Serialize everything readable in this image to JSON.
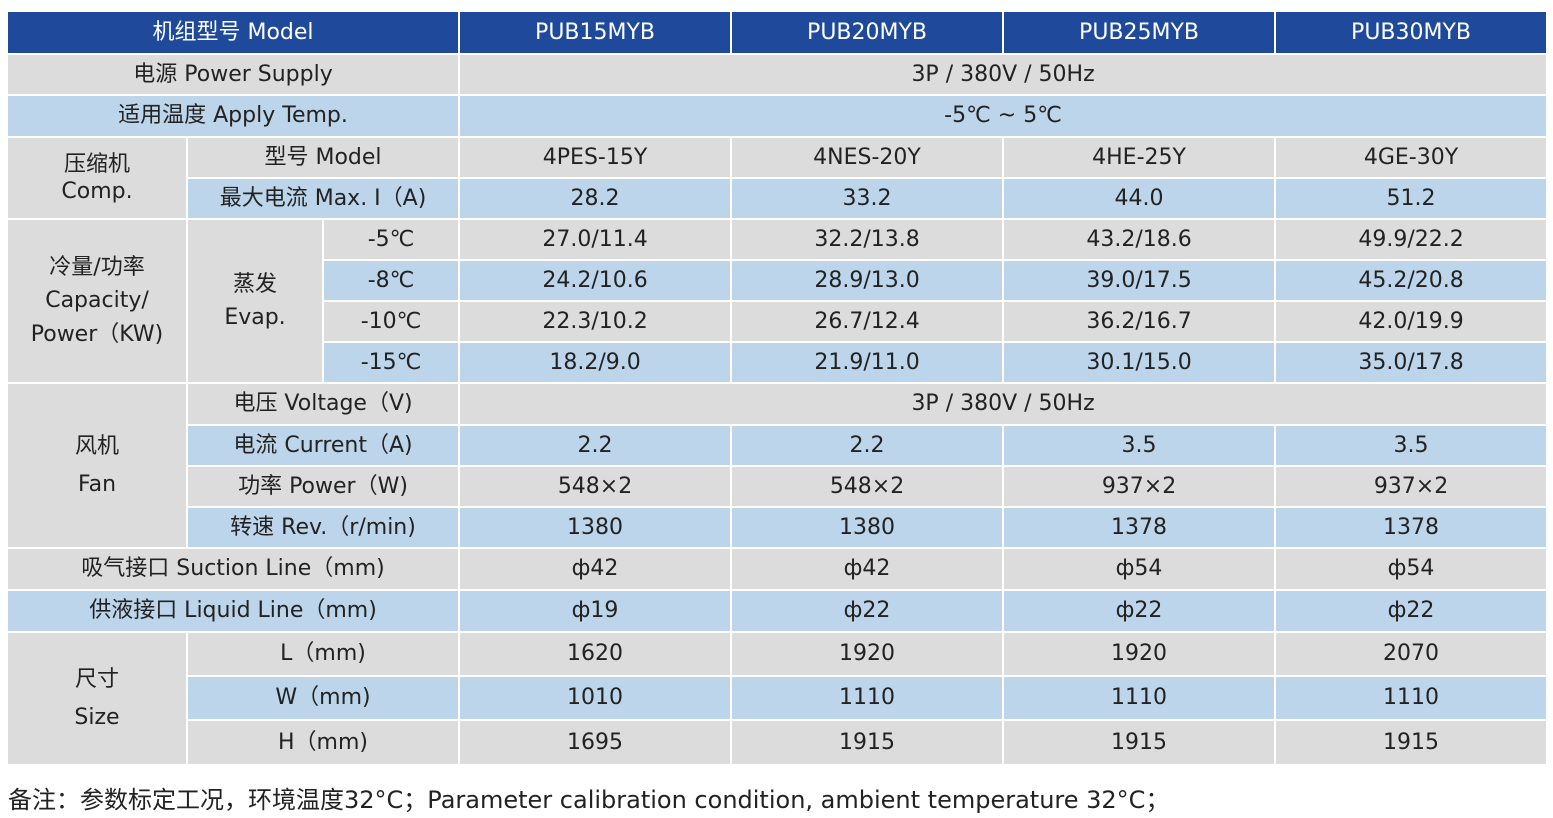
{
  "header": {
    "label": "机组型号 Model",
    "models": [
      "PUB15MYB",
      "PUB20MYB",
      "PUB25MYB",
      "PUB30MYB"
    ]
  },
  "power_supply": {
    "label": "电源 Power Supply",
    "value": "3P / 380V / 50Hz"
  },
  "apply_temp": {
    "label": "适用温度 Apply Temp.",
    "value": "-5℃ ~ 5℃"
  },
  "compressor": {
    "group_label_cn": "压缩机",
    "group_label_en": "Comp.",
    "model_label": "型号 Model",
    "models": [
      "4PES-15Y",
      "4NES-20Y",
      "4HE-25Y",
      "4GE-30Y"
    ],
    "max_current_label": "最大电流 Max. I（A)",
    "max_current": [
      "28.2",
      "33.2",
      "44.0",
      "51.2"
    ]
  },
  "capacity": {
    "group_label_1": "冷量/功率",
    "group_label_2": "Capacity/",
    "group_label_3": "Power（KW)",
    "evap_label_cn": "蒸发",
    "evap_label_en": "Evap.",
    "rows": [
      {
        "temp": "-5℃",
        "values": [
          "27.0/11.4",
          "32.2/13.8",
          "43.2/18.6",
          "49.9/22.2"
        ]
      },
      {
        "temp": "-8℃",
        "values": [
          "24.2/10.6",
          "28.9/13.0",
          "39.0/17.5",
          "45.2/20.8"
        ]
      },
      {
        "temp": "-10℃",
        "values": [
          "22.3/10.2",
          "26.7/12.4",
          "36.2/16.7",
          "42.0/19.9"
        ]
      },
      {
        "temp": "-15℃",
        "values": [
          "18.2/9.0",
          "21.9/11.0",
          "30.1/15.0",
          "35.0/17.8"
        ]
      }
    ]
  },
  "fan": {
    "group_label_cn": "风机",
    "group_label_en": "Fan",
    "voltage_label": "电压 Voltage（V)",
    "voltage": "3P / 380V / 50Hz",
    "current_label": "电流 Current（A)",
    "current": [
      "2.2",
      "2.2",
      "3.5",
      "3.5"
    ],
    "power_label": "功率 Power（W)",
    "power": [
      "548×2",
      "548×2",
      "937×2",
      "937×2"
    ],
    "rev_label": "转速 Rev.（r/min)",
    "rev": [
      "1380",
      "1380",
      "1378",
      "1378"
    ]
  },
  "suction": {
    "label": "吸气接口 Suction Line（mm)",
    "values": [
      "ф42",
      "ф42",
      "ф54",
      "ф54"
    ]
  },
  "liquid": {
    "label": "供液接口 Liquid Line（mm)",
    "values": [
      "ф19",
      "ф22",
      "ф22",
      "ф22"
    ]
  },
  "size": {
    "group_label_cn": "尺寸",
    "group_label_en": "Size",
    "l_label": "L（mm)",
    "l": [
      "1620",
      "1920",
      "1920",
      "2070"
    ],
    "w_label": "W（mm)",
    "w": [
      "1010",
      "1110",
      "1110",
      "1110"
    ],
    "h_label": "H（mm)",
    "h": [
      "1695",
      "1915",
      "1915",
      "1915"
    ]
  },
  "note": "备注：参数标定工况，环境温度32°C；Parameter calibration condition, ambient temperature 32°C；",
  "colors": {
    "header_bg": "#1f4a9c",
    "row_gray": "#dcdcdc",
    "row_blue": "#bcd5ea"
  }
}
